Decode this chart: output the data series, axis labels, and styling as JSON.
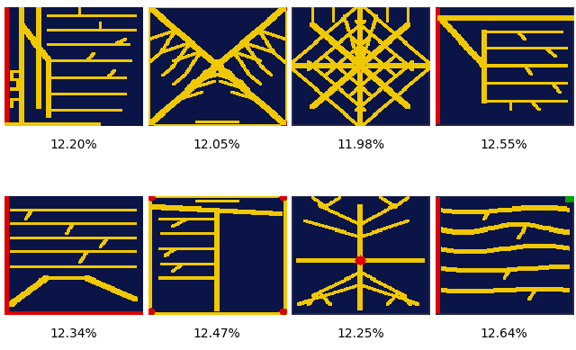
{
  "nrows": 2,
  "ncols": 4,
  "labels": [
    "12.20%",
    "12.05%",
    "11.98%",
    "12.55%",
    "12.34%",
    "12.47%",
    "12.25%",
    "12.64%"
  ],
  "bg_color": [
    10,
    20,
    70
  ],
  "finger_color": [
    240,
    200,
    0
  ],
  "red_color": [
    220,
    0,
    0
  ],
  "green_color": [
    0,
    160,
    0
  ],
  "border_color": [
    220,
    0,
    0
  ],
  "label_fontsize": 10,
  "cell_size": 128
}
